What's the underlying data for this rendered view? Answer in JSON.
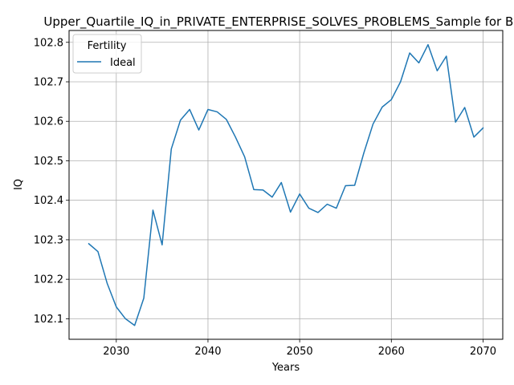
{
  "chart_data": {
    "type": "line",
    "title": "Upper_Quartile_IQ_in_PRIVATE_ENTERPRISE_SOLVES_PROBLEMS_Sample for Black",
    "xlabel": "Years",
    "ylabel": "IQ",
    "xlim": [
      2024.85,
      2072.15
    ],
    "ylim": [
      102.048,
      102.83
    ],
    "x_ticks": [
      2030,
      2040,
      2050,
      2060,
      2070
    ],
    "y_ticks": [
      102.1,
      102.2,
      102.3,
      102.4,
      102.5,
      102.6,
      102.7,
      102.8
    ],
    "y_tick_labels": [
      "102.1",
      "102.2",
      "102.3",
      "102.4",
      "102.5",
      "102.6",
      "102.7",
      "102.8"
    ],
    "grid": true,
    "legend": {
      "title": "Fertility",
      "placement": "top-left"
    },
    "x": [
      2027,
      2028,
      2029,
      2030,
      2031,
      2032,
      2033,
      2034,
      2035,
      2036,
      2037,
      2038,
      2039,
      2040,
      2041,
      2042,
      2043,
      2044,
      2045,
      2046,
      2047,
      2048,
      2049,
      2050,
      2051,
      2052,
      2053,
      2054,
      2055,
      2056,
      2057,
      2058,
      2059,
      2060,
      2061,
      2062,
      2063,
      2064,
      2065,
      2066,
      2067,
      2068,
      2069,
      2070
    ],
    "series": [
      {
        "name": "Ideal",
        "color": "#1f77b4",
        "values": [
          102.29,
          102.27,
          102.19,
          102.13,
          102.1,
          102.083,
          102.152,
          102.375,
          102.287,
          102.53,
          102.603,
          102.63,
          102.578,
          102.63,
          102.624,
          102.605,
          102.56,
          102.51,
          102.427,
          102.426,
          102.408,
          102.445,
          102.37,
          102.416,
          102.38,
          102.369,
          102.39,
          102.38,
          102.437,
          102.438,
          102.52,
          102.593,
          102.636,
          102.655,
          102.7,
          102.773,
          102.748,
          102.794,
          102.728,
          102.765,
          102.598,
          102.635,
          102.56,
          102.583
        ]
      }
    ]
  }
}
